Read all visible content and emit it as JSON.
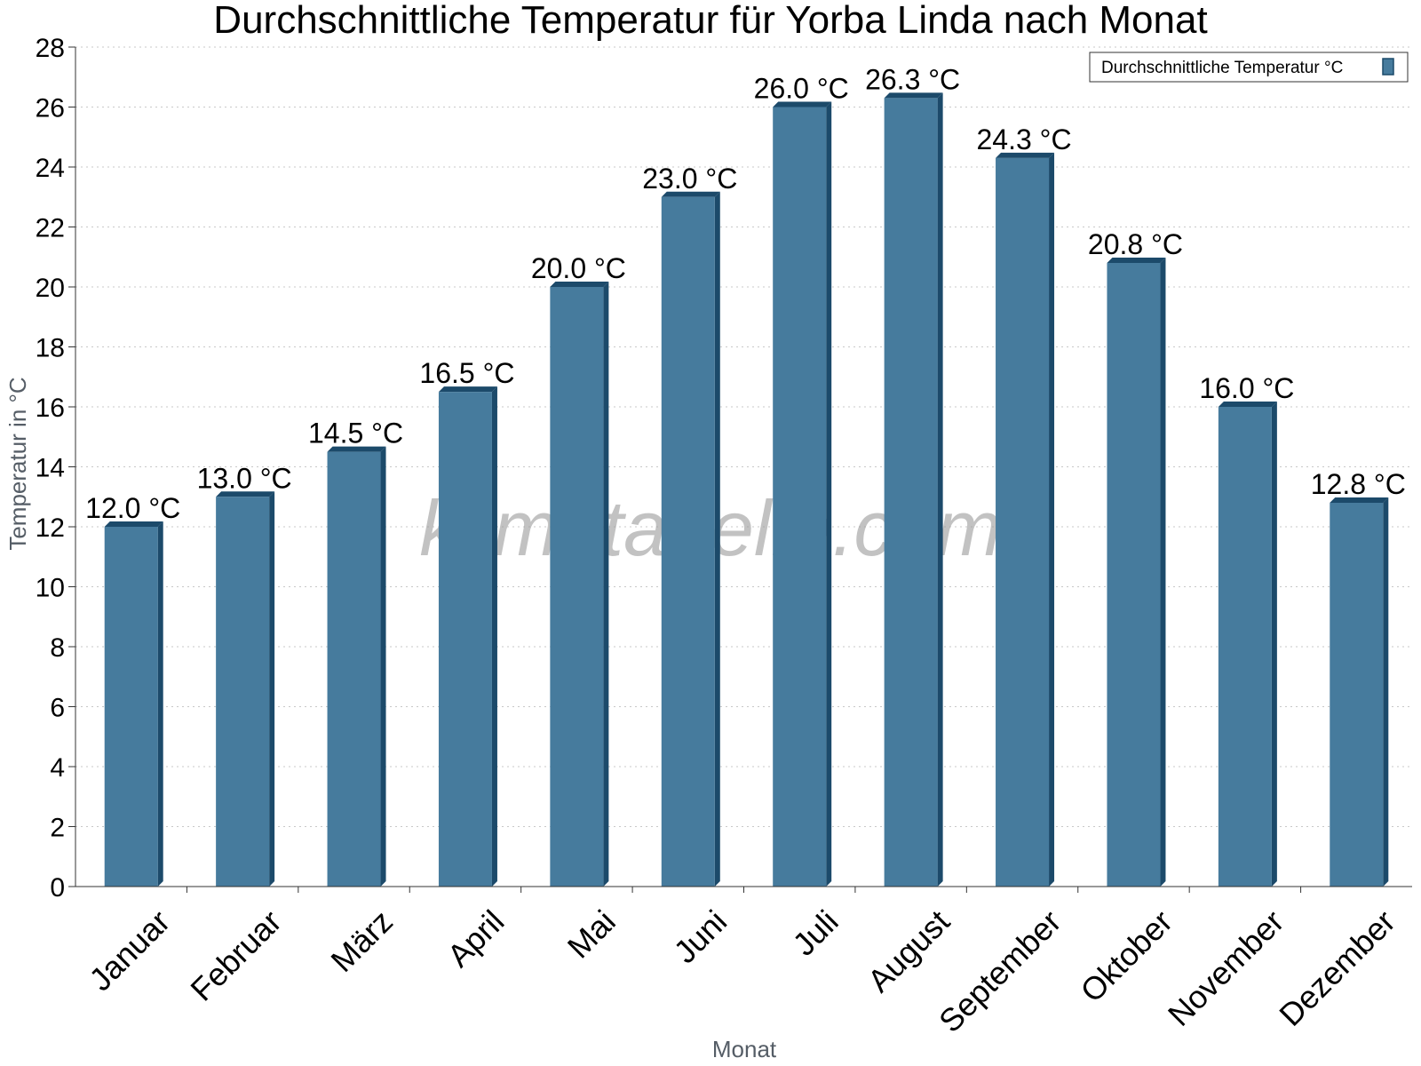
{
  "chart_data": {
    "type": "bar",
    "title": "Durchschnittliche Temperatur für Yorba Linda nach Monat",
    "xlabel": "Monat",
    "ylabel": "Temperatur in °C",
    "categories": [
      "Januar",
      "Februar",
      "März",
      "April",
      "Mai",
      "Juni",
      "Juli",
      "August",
      "September",
      "Oktober",
      "November",
      "Dezember"
    ],
    "series": [
      {
        "name": "Durchschnittliche Temperatur °C",
        "values": [
          12.0,
          13.0,
          14.5,
          16.5,
          20.0,
          23.0,
          26.0,
          26.3,
          24.3,
          20.8,
          16.0,
          12.8
        ],
        "labels": [
          "12.0 °C",
          "13.0 °C",
          "14.5 °C",
          "16.5 °C",
          "20.0 °C",
          "23.0 °C",
          "26.0 °C",
          "26.3 °C",
          "24.3 °C",
          "20.8 °C",
          "16.0 °C",
          "12.8 °C"
        ]
      }
    ],
    "ylim": [
      0,
      28
    ],
    "ytick_step": 2,
    "grid": true,
    "legend_position": "top-right",
    "watermark": "klimatabelle.com",
    "colors": {
      "bar": "#467b9d",
      "bar_edge": "#1c4a6a",
      "grid": "#c8c8c8",
      "axis": "#333333"
    }
  }
}
